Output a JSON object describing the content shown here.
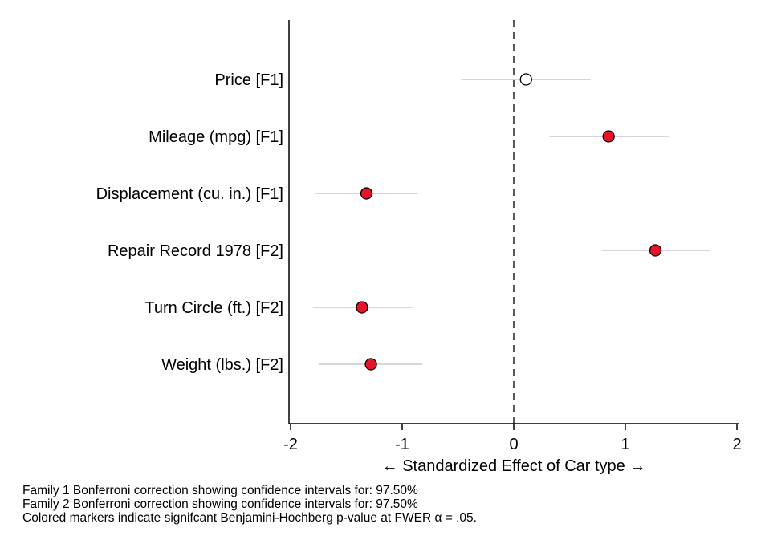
{
  "chart_data": {
    "type": "scatter",
    "subtype": "coefficient-plot",
    "orientation": "horizontal",
    "categories": [
      "Price [F1]",
      "Mileage (mpg) [F1]",
      "Displacement (cu. in.) [F1]",
      "Repair Record 1978 [F2]",
      "Turn Circle (ft.)  [F2]",
      "Weight (lbs.) [F2]"
    ],
    "estimates": [
      0.11,
      0.85,
      -1.32,
      1.27,
      -1.36,
      -1.28
    ],
    "ci_low": [
      -0.47,
      0.32,
      -1.78,
      0.79,
      -1.8,
      -1.75
    ],
    "ci_high": [
      0.69,
      1.39,
      -0.86,
      1.76,
      -0.91,
      -0.82
    ],
    "significant": [
      false,
      true,
      true,
      true,
      true,
      true
    ],
    "xlabel": "← Standardized Effect of Car type →",
    "xlim": [
      -2,
      2
    ],
    "xticks": [
      "-2",
      "-1",
      "0",
      "1",
      "2"
    ],
    "reference_line": 0,
    "reference_line_style": "dashed",
    "grid": false,
    "legend": "none",
    "colors": {
      "significant_marker": "#e8132a",
      "nonsignificant_marker": "#ffffff",
      "marker_outline": "#000000",
      "ci_line": "#c8c8c8",
      "axis": "#000000"
    }
  },
  "notes": [
    "Family 1 Bonferroni correction showing confidence intervals for: 97.50%",
    "Family 2 Bonferroni correction showing confidence intervals for: 97.50%",
    "Colored markers indicate signifcant Benjamini-Hochberg p-value at FWER α = .05."
  ]
}
